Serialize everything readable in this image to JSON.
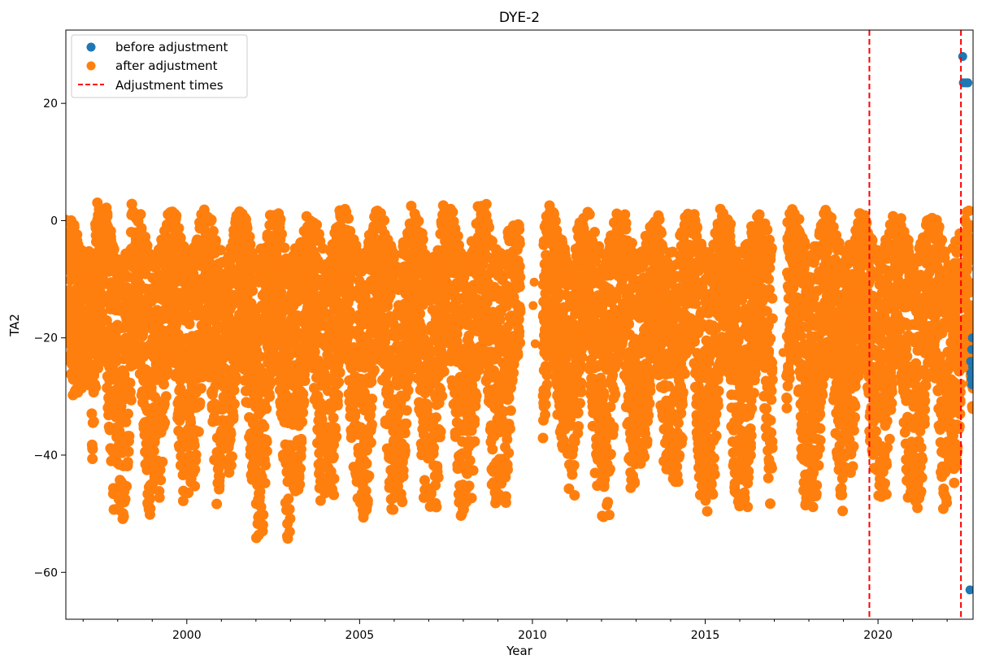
{
  "chart_data": {
    "type": "scatter",
    "title": "DYE-2",
    "xlabel": "Year",
    "ylabel": "TA2",
    "xlim": [
      1996.5,
      2022.75
    ],
    "ylim": [
      -68,
      32.5
    ],
    "x_ticks": [
      2000,
      2005,
      2010,
      2015,
      2020
    ],
    "x_tick_labels": [
      "2000",
      "2005",
      "2010",
      "2015",
      "2020"
    ],
    "y_ticks": [
      -60,
      -40,
      -20,
      0,
      20
    ],
    "y_tick_labels": [
      "−60",
      "−40",
      "−20",
      "0",
      "20"
    ],
    "grid": false,
    "legend_position": "top-left",
    "series": [
      {
        "name": "before adjustment",
        "marker": "circle",
        "color": "#1f77b4",
        "x": [
          2022.45,
          2022.47,
          2022.55,
          2022.6,
          2022.66,
          2022.68,
          2022.7,
          2022.72,
          2022.74,
          2022.69,
          2022.71,
          2022.73
        ],
        "y": [
          28,
          23.5,
          23.5,
          23.5,
          -63,
          -24,
          -27,
          -28,
          -25,
          -26,
          -22,
          -20
        ]
      },
      {
        "name": "after adjustment",
        "marker": "circle",
        "color": "#ff7f0e",
        "seasonal_envelope": [
          {
            "year": 1996.5,
            "summer_high": 1.5,
            "winter_low": -30
          },
          {
            "year": 1997,
            "summer_high": 4,
            "winter_low": -51
          },
          {
            "year": 1998,
            "summer_high": 3.5,
            "winter_low": -54
          },
          {
            "year": 1999,
            "summer_high": 2.5,
            "winter_low": -48
          },
          {
            "year": 2000,
            "summer_high": 2.5,
            "winter_low": -49
          },
          {
            "year": 2001,
            "summer_high": 2.5,
            "winter_low": -46
          },
          {
            "year": 2002,
            "summer_high": 2,
            "winter_low": -58
          },
          {
            "year": 2003,
            "summer_high": 2,
            "winter_low": -48
          },
          {
            "year": 2004,
            "summer_high": 3,
            "winter_low": -48
          },
          {
            "year": 2005,
            "summer_high": 2.5,
            "winter_low": -53
          },
          {
            "year": 2006,
            "summer_high": 3,
            "winter_low": -49
          },
          {
            "year": 2007,
            "summer_high": 3.5,
            "winter_low": -51
          },
          {
            "year": 2008,
            "summer_high": 3.5,
            "winter_low": -51
          },
          {
            "year": 2009,
            "summer_high": 1.5,
            "winter_low": -49
          },
          {
            "year": 2010,
            "summer_high": 3,
            "winter_low": -39
          },
          {
            "year": 2011,
            "summer_high": 2,
            "winter_low": -47
          },
          {
            "year": 2012,
            "summer_high": 3,
            "winter_low": -52
          },
          {
            "year": 2013,
            "summer_high": 2,
            "winter_low": -43
          },
          {
            "year": 2014,
            "summer_high": 2.5,
            "winter_low": -47
          },
          {
            "year": 2015,
            "summer_high": 2.5,
            "winter_low": -51
          },
          {
            "year": 2016,
            "summer_high": 2,
            "winter_low": -49
          },
          {
            "year": 2018,
            "summer_high": 2.5,
            "winter_low": -51
          },
          {
            "year": 2019,
            "summer_high": 2,
            "winter_low": -45
          },
          {
            "year": 2020,
            "summer_high": 2,
            "winter_low": -48
          },
          {
            "year": 2021,
            "summer_high": 2,
            "winter_low": -52
          },
          {
            "year": 2022,
            "summer_high": 3,
            "winter_low": -46
          }
        ],
        "gap_outliers": [
          {
            "x": 2010.05,
            "y": -10.5
          },
          {
            "x": 2010.02,
            "y": -14.5
          },
          {
            "x": 2010.08,
            "y": -21
          },
          {
            "x": 2017.25,
            "y": -22.5
          }
        ]
      },
      {
        "name": "Adjustment times",
        "line_style": "dashed",
        "color": "#ff0000",
        "x": [
          2019.75,
          2022.4
        ]
      }
    ]
  }
}
